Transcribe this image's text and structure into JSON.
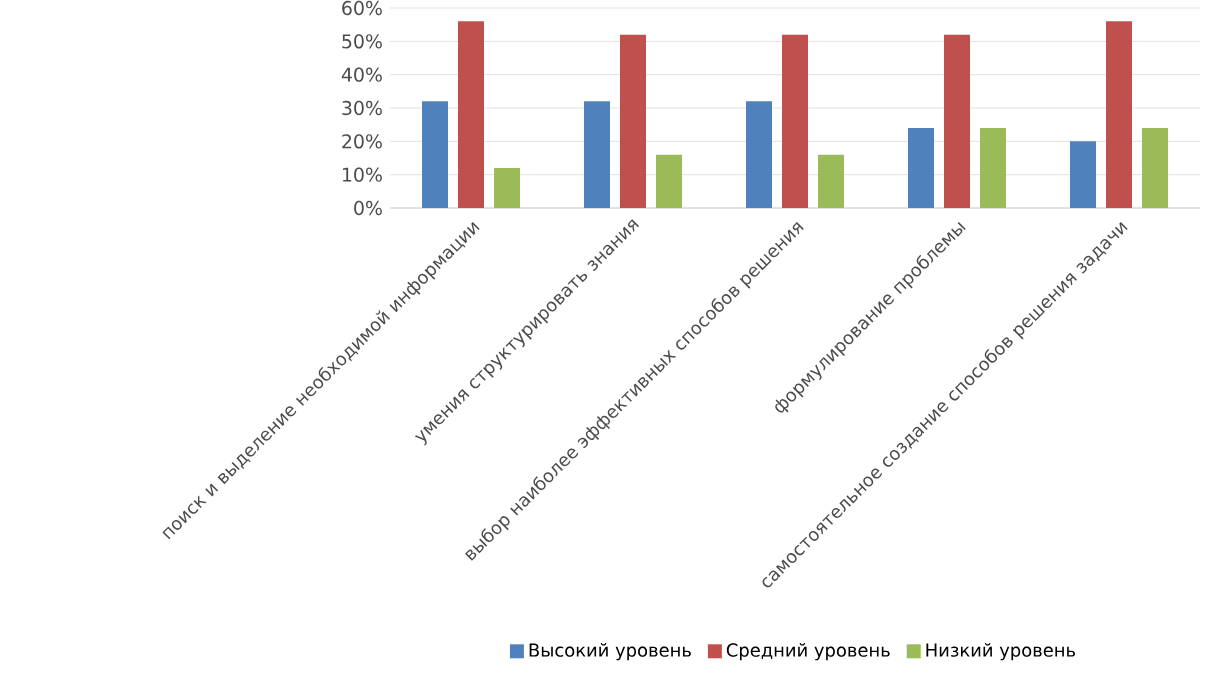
{
  "chart_data": {
    "type": "bar",
    "categories": [
      "поиск и выделение необходимой информации",
      "умения структурировать знания",
      "выбор наиболее эффективных способов решения",
      "формулирование проблемы",
      "самостоятельное создание способов решения задачи"
    ],
    "series": [
      {
        "name": "Высокий уровень",
        "color": "#4f81bd",
        "values": [
          32,
          32,
          32,
          24,
          20
        ]
      },
      {
        "name": "Средний уровень",
        "color": "#c0504d",
        "values": [
          56,
          52,
          52,
          52,
          56
        ]
      },
      {
        "name": "Низкий уровень",
        "color": "#9bbb59",
        "values": [
          12,
          16,
          16,
          24,
          24
        ]
      }
    ],
    "ylim": [
      0,
      60
    ],
    "yticks": [
      {
        "value": 0,
        "label": "0%"
      },
      {
        "value": 10,
        "label": "10%"
      },
      {
        "value": 20,
        "label": "20%"
      },
      {
        "value": 30,
        "label": "30%"
      },
      {
        "value": 40,
        "label": "40%"
      },
      {
        "value": 50,
        "label": "50%"
      },
      {
        "value": 60,
        "label": "60%"
      }
    ],
    "grid": true,
    "legend": "bottom"
  }
}
